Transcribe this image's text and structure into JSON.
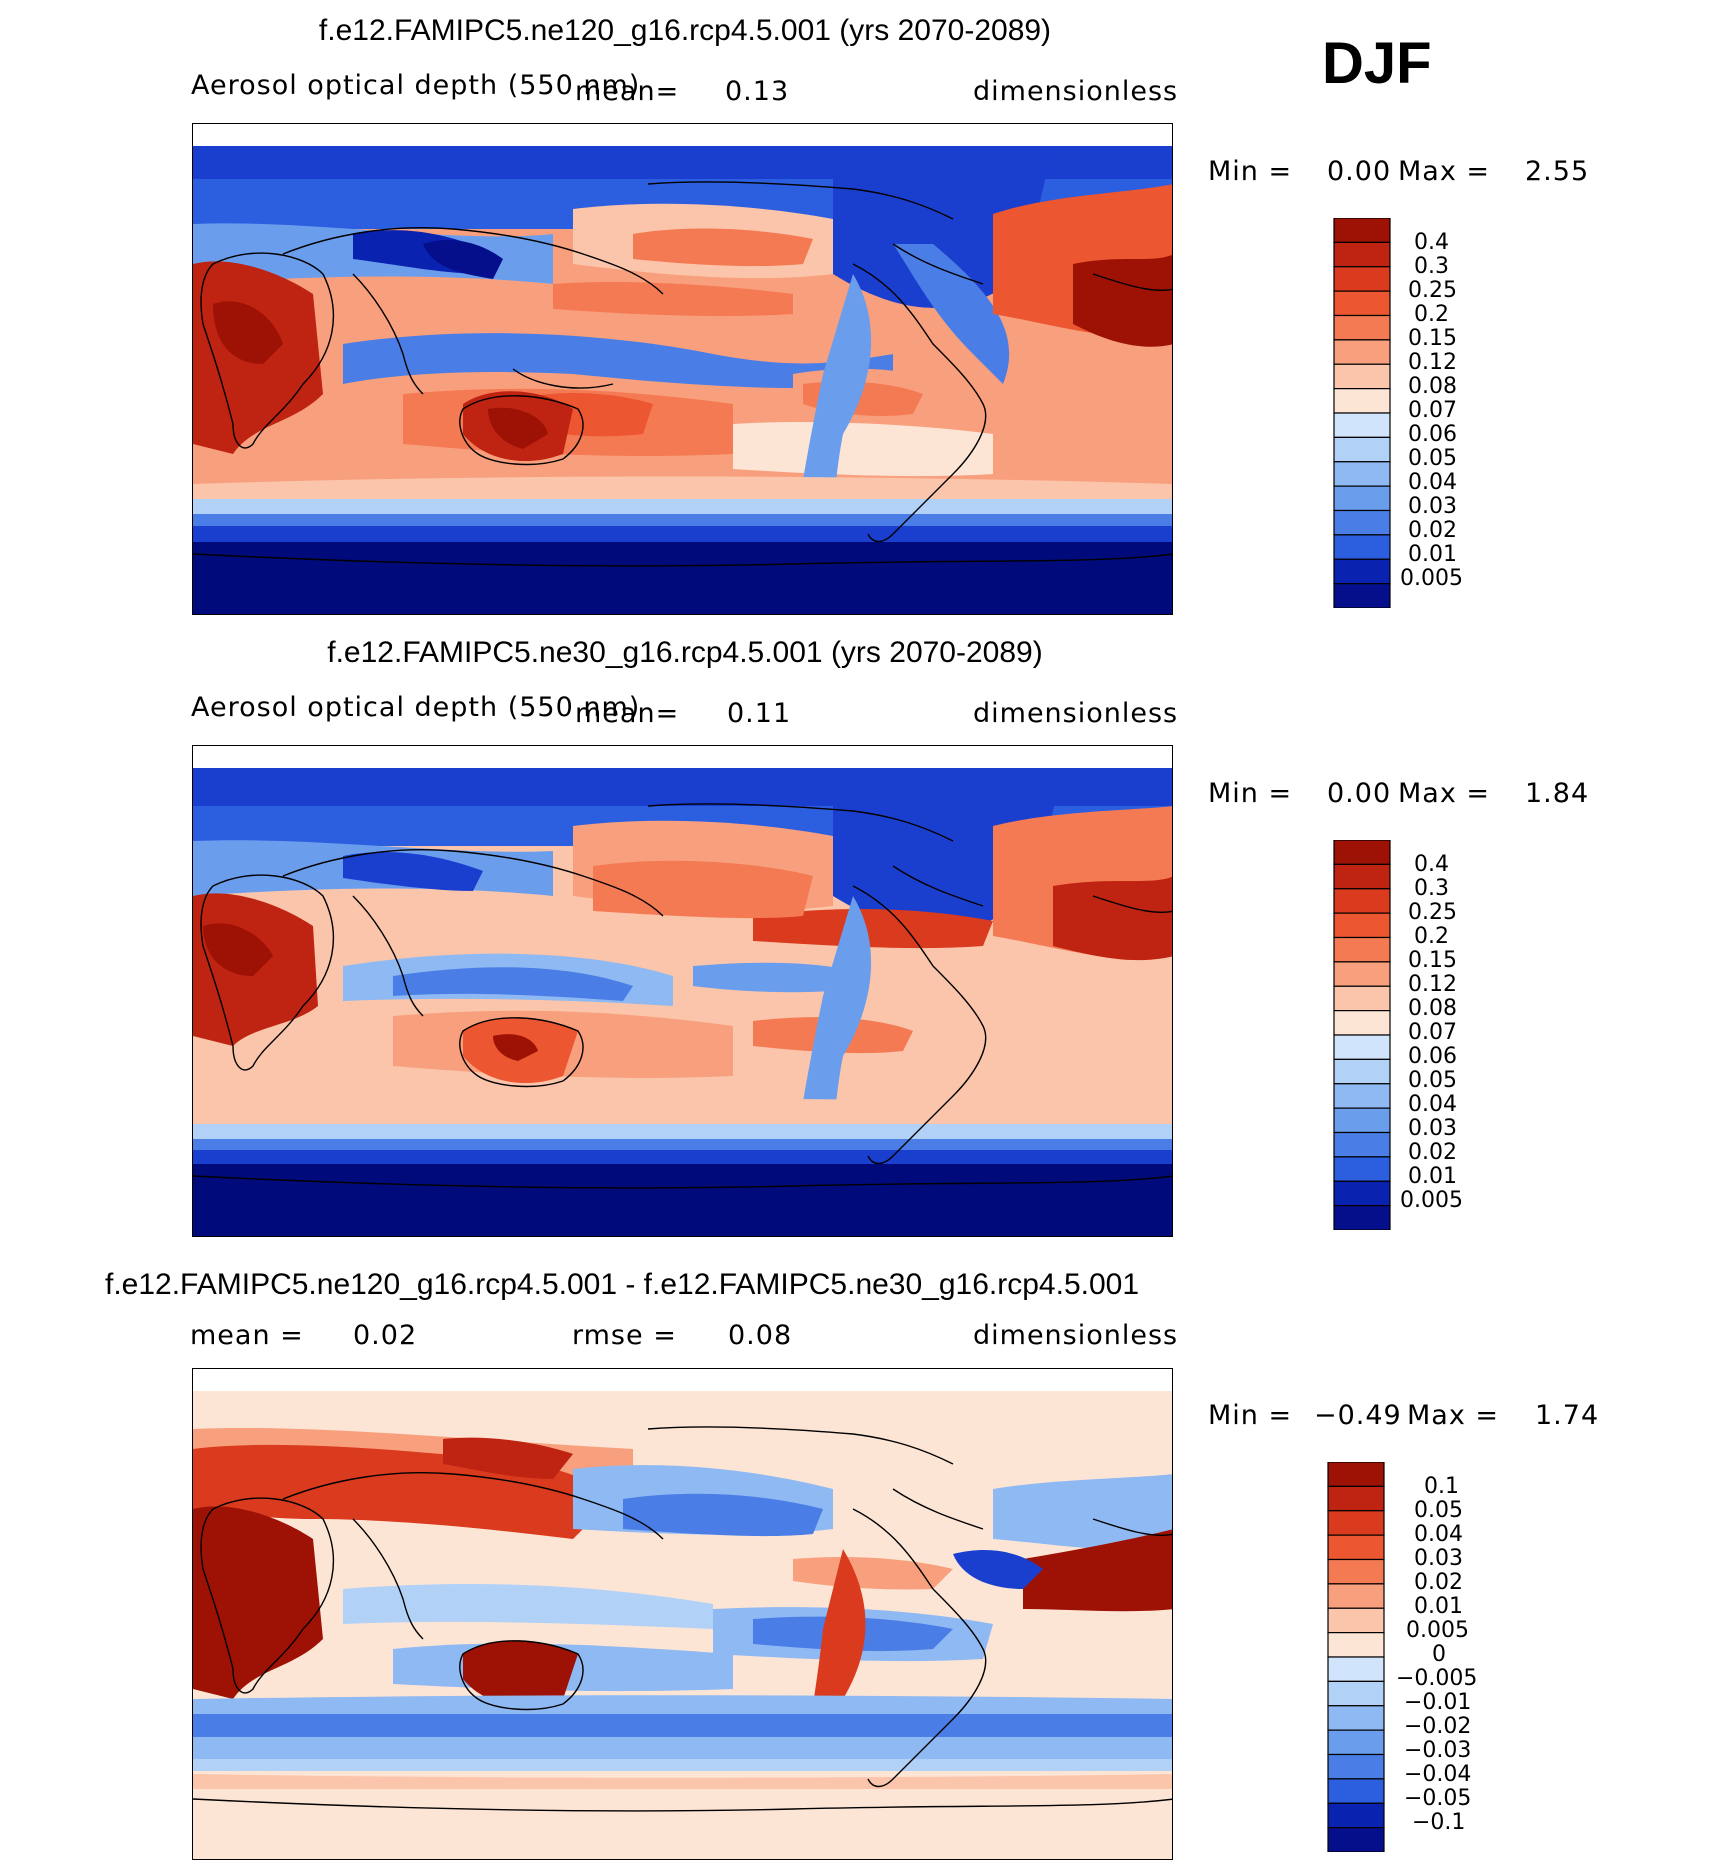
{
  "season": "DJF",
  "colors": {
    "pos": [
      "#fde5d6",
      "#fbc5ab",
      "#f8a07d",
      "#f47a54",
      "#ec5630",
      "#da3a1d",
      "#bf2311",
      "#9e1205"
    ],
    "neg": [
      "#d0e4fb",
      "#b2d1f7",
      "#8fb9f2",
      "#6b9ded",
      "#4a7ee6",
      "#2c5ee0",
      "#1a3fcf",
      "#0a22b0",
      "#050f8c"
    ],
    "land": "#000000",
    "deep_blue": "#000a7a"
  },
  "panels": [
    {
      "id": "ne120",
      "title": "f.e12.FAMIPC5.ne120_g16.rcp4.5.001 (yrs 2070-2089)",
      "variable": "Aerosol optical depth (550 nm)",
      "mean_label": "mean=",
      "mean_value": "0.13",
      "units": "dimensionless",
      "min_label": "Min =",
      "min_value": "0.00",
      "max_label": "Max =",
      "max_value": "2.55",
      "colorbar": [
        "0.4",
        "0.3",
        "0.25",
        "0.2",
        "0.15",
        "0.12",
        "0.08",
        "0.07",
        "0.06",
        "0.05",
        "0.04",
        "0.03",
        "0.02",
        "0.01",
        "0.005"
      ]
    },
    {
      "id": "ne30",
      "title": "f.e12.FAMIPC5.ne30_g16.rcp4.5.001 (yrs 2070-2089)",
      "variable": "Aerosol optical depth (550 nm)",
      "mean_label": "mean=",
      "mean_value": "0.11",
      "units": "dimensionless",
      "min_label": "Min =",
      "min_value": "0.00",
      "max_label": "Max =",
      "max_value": "1.84",
      "colorbar": [
        "0.4",
        "0.3",
        "0.25",
        "0.2",
        "0.15",
        "0.12",
        "0.08",
        "0.07",
        "0.06",
        "0.05",
        "0.04",
        "0.03",
        "0.02",
        "0.01",
        "0.005"
      ]
    },
    {
      "id": "diff",
      "title": "f.e12.FAMIPC5.ne120_g16.rcp4.5.001 - f.e12.FAMIPC5.ne30_g16.rcp4.5.001",
      "mean_label": "mean =",
      "mean_value": "0.02",
      "rmse_label": "rmse =",
      "rmse_value": "0.08",
      "units": "dimensionless",
      "min_label": "Min =",
      "min_value": "−0.49",
      "max_label": "Max =",
      "max_value": "1.74",
      "colorbar": [
        "0.1",
        "0.05",
        "0.04",
        "0.03",
        "0.02",
        "0.01",
        "0.005",
        "0",
        "−0.005",
        "−0.01",
        "−0.02",
        "−0.03",
        "−0.04",
        "−0.05",
        "−0.1"
      ]
    }
  ],
  "chart_data": [
    {
      "type": "heatmap",
      "title": "f.e12.FAMIPC5.ne120_g16.rcp4.5.001 (yrs 2070-2089)",
      "subtitle": "Aerosol optical depth (550 nm)",
      "units": "dimensionless",
      "mean": 0.13,
      "min": 0.0,
      "max": 2.55,
      "levels": [
        0.005,
        0.01,
        0.02,
        0.03,
        0.04,
        0.05,
        0.06,
        0.07,
        0.08,
        0.12,
        0.15,
        0.2,
        0.25,
        0.3,
        0.4
      ]
    },
    {
      "type": "heatmap",
      "title": "f.e12.FAMIPC5.ne30_g16.rcp4.5.001 (yrs 2070-2089)",
      "subtitle": "Aerosol optical depth (550 nm)",
      "units": "dimensionless",
      "mean": 0.11,
      "min": 0.0,
      "max": 1.84,
      "levels": [
        0.005,
        0.01,
        0.02,
        0.03,
        0.04,
        0.05,
        0.06,
        0.07,
        0.08,
        0.12,
        0.15,
        0.2,
        0.25,
        0.3,
        0.4
      ]
    },
    {
      "type": "heatmap",
      "title": "f.e12.FAMIPC5.ne120_g16.rcp4.5.001 - f.e12.FAMIPC5.ne30_g16.rcp4.5.001",
      "units": "dimensionless",
      "mean": 0.02,
      "rmse": 0.08,
      "min": -0.49,
      "max": 1.74,
      "levels": [
        -0.1,
        -0.05,
        -0.04,
        -0.03,
        -0.02,
        -0.01,
        -0.005,
        0,
        0.005,
        0.01,
        0.02,
        0.03,
        0.04,
        0.05,
        0.1
      ]
    }
  ]
}
